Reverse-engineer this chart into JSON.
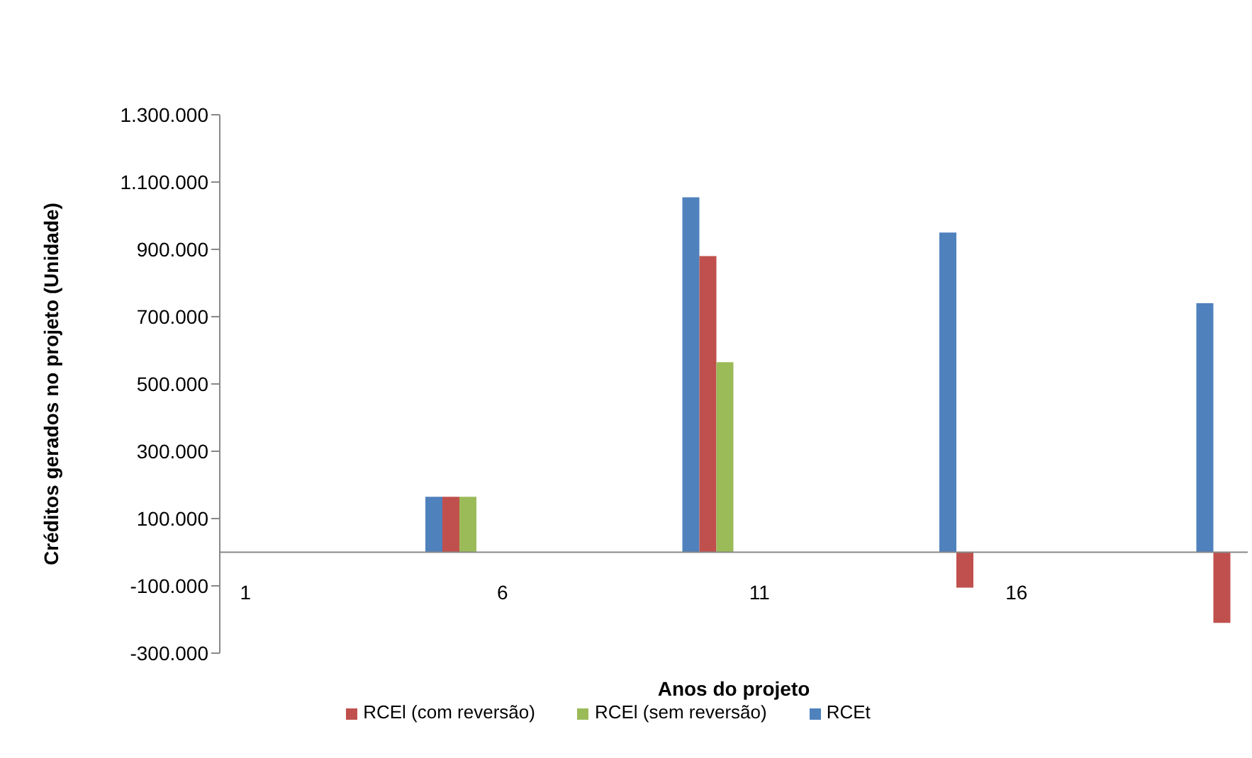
{
  "chart_data": {
    "type": "bar",
    "xlabel": "Anos do projeto",
    "ylabel": "Créditos gerados no projeto (Unidade)",
    "categories": [
      "1",
      null,
      null,
      null,
      null,
      "6",
      null,
      null,
      null,
      null,
      "11",
      null,
      null,
      null,
      null,
      "16",
      null,
      null,
      null,
      null
    ],
    "series": [
      {
        "name": "RCEt",
        "color": "#4f81bd",
        "values": [
          null,
          null,
          null,
          null,
          165000,
          null,
          null,
          null,
          null,
          1055000,
          null,
          null,
          null,
          null,
          950000,
          null,
          null,
          null,
          null,
          740000
        ]
      },
      {
        "name": "RCEl (com reversão)",
        "color": "#c0504d",
        "values": [
          null,
          null,
          null,
          null,
          165000,
          null,
          null,
          null,
          null,
          880000,
          null,
          null,
          null,
          null,
          -105000,
          null,
          null,
          null,
          null,
          -210000
        ]
      },
      {
        "name": "RCEl (sem reversão)",
        "color": "#9bbb59",
        "values": [
          null,
          null,
          null,
          null,
          165000,
          null,
          null,
          null,
          null,
          565000,
          null,
          null,
          null,
          null,
          null,
          null,
          null,
          null,
          null,
          null
        ]
      }
    ],
    "ylim": [
      -300000,
      1300000
    ],
    "yticks": [
      {
        "value": -300000,
        "label": "-300.000"
      },
      {
        "value": -100000,
        "label": "-100.000"
      },
      {
        "value": 100000,
        "label": "100.000"
      },
      {
        "value": 300000,
        "label": "300.000"
      },
      {
        "value": 500000,
        "label": "500.000"
      },
      {
        "value": 700000,
        "label": "700.000"
      },
      {
        "value": 900000,
        "label": "900.000"
      },
      {
        "value": 1100000,
        "label": "1.100.000"
      },
      {
        "value": 1300000,
        "label": "1.300.000"
      }
    ],
    "grid": false,
    "legend": "bottom"
  }
}
